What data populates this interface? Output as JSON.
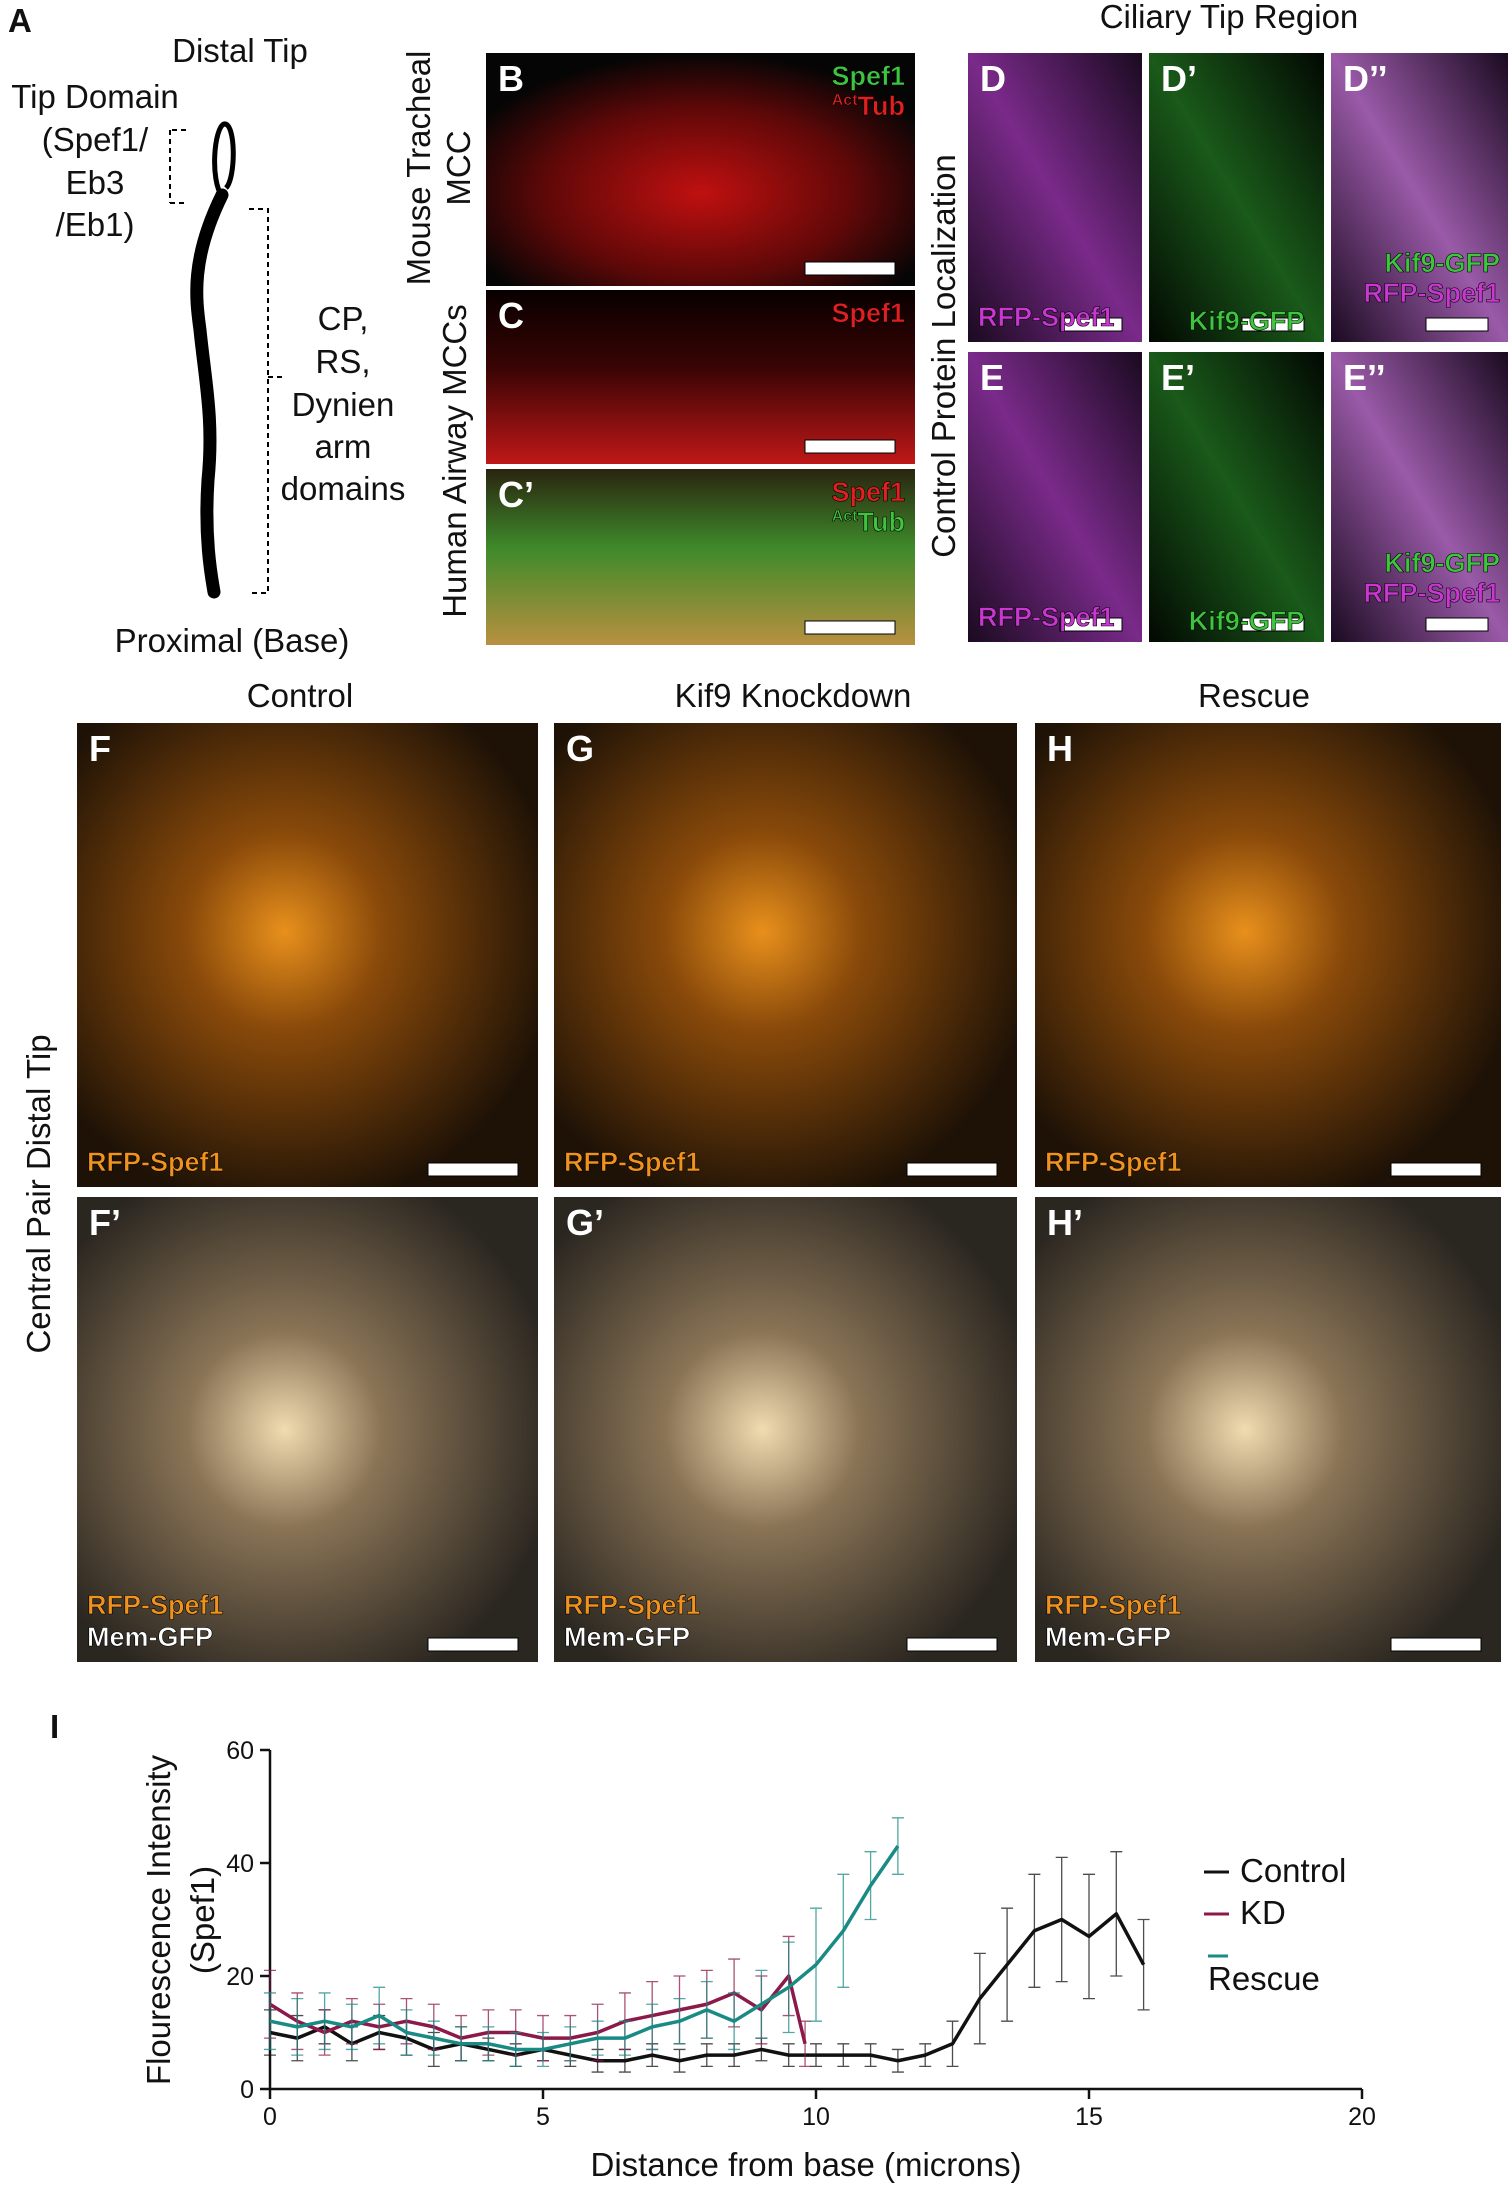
{
  "panel_a": {
    "label": "A",
    "distal": "Distal Tip",
    "tip_domain": [
      "Tip Domain",
      "(Spef1/",
      "Eb3",
      "/Eb1)"
    ],
    "domains": [
      "CP,",
      "RS,",
      "Dynien",
      "arm",
      "domains"
    ],
    "proximal": "Proximal (Base)"
  },
  "row_labels": {
    "mouse": [
      "Mouse Tracheal",
      "MCC"
    ],
    "human": "Human Airway MCCs",
    "control_protein": "Control Protein Localization",
    "central_pair": "Central Pair Distal Tip"
  },
  "ciliary_tip_region": "Ciliary Tip Region",
  "column_titles": [
    "Control",
    "Kif9 Knockdown",
    "Rescue"
  ],
  "panels": [
    {
      "label": "B",
      "stains": [
        {
          "text": "Spef1",
          "color": "#3ec43e"
        },
        {
          "sup": "Act",
          "text": "Tub",
          "color": "#e02020"
        }
      ]
    },
    {
      "label": "C",
      "stains": [
        {
          "text": "Spef1",
          "color": "#e02020"
        }
      ]
    },
    {
      "label": "C’",
      "stains": [
        {
          "text": "Spef1",
          "color": "#e02020"
        },
        {
          "sup": "Act",
          "text": "Tub",
          "color": "#3ec43e"
        }
      ]
    },
    {
      "label": "D",
      "stains": [
        {
          "text": "RFP-Spef1",
          "color": "#c838d0"
        }
      ]
    },
    {
      "label": "D’",
      "stains": [
        {
          "text": "Kif9-GFP",
          "color": "#3ec43e"
        }
      ]
    },
    {
      "label": "D’’",
      "stains": [
        {
          "text": "Kif9-GFP",
          "color": "#3ec43e"
        },
        {
          "text": "RFP-Spef1",
          "color": "#c838d0"
        }
      ]
    },
    {
      "label": "E",
      "stains": [
        {
          "text": "RFP-Spef1",
          "color": "#c838d0"
        }
      ]
    },
    {
      "label": "E’",
      "stains": [
        {
          "text": "Kif9-GFP",
          "color": "#3ec43e"
        }
      ]
    },
    {
      "label": "E’’",
      "stains": [
        {
          "text": "Kif9-GFP",
          "color": "#3ec43e"
        },
        {
          "text": "RFP-Spef1",
          "color": "#c838d0"
        }
      ]
    },
    {
      "label": "F",
      "stains": [
        {
          "text": "RFP-Spef1",
          "color": "#f0921e"
        }
      ]
    },
    {
      "label": "G",
      "stains": [
        {
          "text": "RFP-Spef1",
          "color": "#f0921e"
        }
      ]
    },
    {
      "label": "H",
      "stains": [
        {
          "text": "RFP-Spef1",
          "color": "#f0921e"
        }
      ]
    },
    {
      "label": "F’",
      "stains": [
        {
          "text": "RFP-Spef1",
          "color": "#f0921e"
        },
        {
          "text": "Mem-GFP",
          "color": "#ffffff"
        }
      ]
    },
    {
      "label": "G’",
      "stains": [
        {
          "text": "RFP-Spef1",
          "color": "#f0921e"
        },
        {
          "text": "Mem-GFP",
          "color": "#ffffff"
        }
      ]
    },
    {
      "label": "H’",
      "stains": [
        {
          "text": "RFP-Spef1",
          "color": "#f0921e"
        },
        {
          "text": "Mem-GFP",
          "color": "#ffffff"
        }
      ]
    }
  ],
  "chart_data": {
    "type": "line",
    "panel_label": "I",
    "xlabel": "Distance from base (microns)",
    "ylabel": [
      "Flourescence Intensity",
      "(Spef1)"
    ],
    "xlim": [
      0,
      20
    ],
    "ylim": [
      0,
      60
    ],
    "xticks": [
      0,
      5,
      10,
      15,
      20
    ],
    "yticks": [
      0,
      20,
      40,
      60
    ],
    "series": [
      {
        "name": "Control",
        "color": "#111111",
        "x": [
          0,
          0.5,
          1,
          1.5,
          2,
          2.5,
          3,
          3.5,
          4,
          4.5,
          5,
          5.5,
          6,
          6.5,
          7,
          7.5,
          8,
          8.5,
          9,
          9.5,
          10,
          10.5,
          11,
          11.5,
          12,
          12.5,
          13,
          13.5,
          14,
          14.5,
          15,
          15.5,
          16
        ],
        "values": [
          10,
          9,
          11,
          8,
          10,
          9,
          7,
          8,
          7,
          6,
          7,
          6,
          5,
          5,
          6,
          5,
          6,
          6,
          7,
          6,
          6,
          6,
          6,
          5,
          6,
          8,
          16,
          22,
          28,
          30,
          27,
          31,
          22
        ],
        "errors": [
          4,
          4,
          3,
          3,
          3,
          3,
          3,
          3,
          2,
          2,
          2,
          2,
          2,
          2,
          2,
          2,
          2,
          2,
          2,
          2,
          2,
          2,
          2,
          2,
          2,
          4,
          8,
          10,
          10,
          11,
          11,
          11,
          8
        ]
      },
      {
        "name": "KD",
        "color": "#8b1a4a",
        "x": [
          0,
          0.5,
          1,
          1.5,
          2,
          2.5,
          3,
          3.5,
          4,
          4.5,
          5,
          5.5,
          6,
          6.5,
          7,
          7.5,
          8,
          8.5,
          9,
          9.5,
          9.8
        ],
        "values": [
          15,
          12,
          10,
          12,
          11,
          12,
          11,
          9,
          10,
          10,
          9,
          9,
          10,
          12,
          13,
          14,
          15,
          17,
          14,
          20,
          8
        ],
        "errors": [
          6,
          5,
          4,
          4,
          4,
          4,
          4,
          4,
          4,
          4,
          4,
          4,
          5,
          5,
          6,
          6,
          6,
          6,
          6,
          7,
          4
        ]
      },
      {
        "name": "Rescue",
        "color": "#1a8a85",
        "x": [
          0,
          0.5,
          1,
          1.5,
          2,
          2.5,
          3,
          3.5,
          4,
          4.5,
          5,
          5.5,
          6,
          6.5,
          7,
          7.5,
          8,
          8.5,
          9,
          9.5,
          10,
          10.5,
          11,
          11.5
        ],
        "values": [
          12,
          11,
          12,
          11,
          13,
          10,
          9,
          8,
          8,
          7,
          7,
          8,
          9,
          9,
          11,
          12,
          14,
          12,
          15,
          18,
          22,
          28,
          36,
          43
        ],
        "errors": [
          5,
          5,
          5,
          4,
          5,
          4,
          3,
          3,
          3,
          3,
          3,
          3,
          3,
          3,
          4,
          4,
          5,
          5,
          6,
          8,
          10,
          10,
          6,
          5
        ]
      }
    ]
  }
}
